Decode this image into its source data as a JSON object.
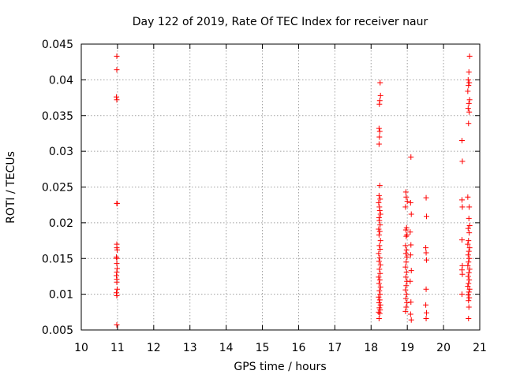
{
  "chart_data": {
    "type": "scatter",
    "title": "Day 122 of 2019, Rate Of TEC Index for receiver naur",
    "xlabel": "GPS time / hours",
    "ylabel": "ROTI / TECUs",
    "xlim": [
      10,
      21
    ],
    "ylim": [
      0.005,
      0.045
    ],
    "xticks": [
      10,
      11,
      12,
      13,
      14,
      15,
      16,
      17,
      18,
      19,
      20,
      21
    ],
    "xtick_labels": [
      "10",
      "11",
      "12",
      "13",
      "14",
      "15",
      "16",
      "17",
      "18",
      "19",
      "20",
      "21"
    ],
    "yticks": [
      0.005,
      0.01,
      0.015,
      0.02,
      0.025,
      0.03,
      0.035,
      0.04,
      0.045
    ],
    "ytick_labels": [
      "0.005",
      "0.01",
      "0.015",
      "0.02",
      "0.025",
      "0.03",
      "0.035",
      "0.04",
      "0.045"
    ],
    "grid": true,
    "marker": "plus",
    "marker_color": "#ff0000",
    "series": [
      {
        "name": "ROTI",
        "points": [
          [
            10.98,
            0.0433
          ],
          [
            10.98,
            0.0414
          ],
          [
            10.97,
            0.0376
          ],
          [
            10.98,
            0.0372
          ],
          [
            10.98,
            0.0227
          ],
          [
            10.99,
            0.0227
          ],
          [
            10.98,
            0.017
          ],
          [
            10.98,
            0.0165
          ],
          [
            10.99,
            0.0162
          ],
          [
            10.97,
            0.0152
          ],
          [
            10.98,
            0.015
          ],
          [
            10.98,
            0.0143
          ],
          [
            10.99,
            0.0136
          ],
          [
            10.98,
            0.0131
          ],
          [
            10.97,
            0.0126
          ],
          [
            10.98,
            0.0121
          ],
          [
            10.98,
            0.0117
          ],
          [
            10.99,
            0.0107
          ],
          [
            10.97,
            0.0102
          ],
          [
            10.98,
            0.0098
          ],
          [
            10.98,
            0.0057
          ],
          [
            18.25,
            0.0396
          ],
          [
            18.26,
            0.0378
          ],
          [
            18.24,
            0.0371
          ],
          [
            18.23,
            0.0366
          ],
          [
            18.22,
            0.0332
          ],
          [
            18.24,
            0.0328
          ],
          [
            18.23,
            0.032
          ],
          [
            18.22,
            0.031
          ],
          [
            18.24,
            0.0252
          ],
          [
            18.22,
            0.0238
          ],
          [
            18.25,
            0.0233
          ],
          [
            18.21,
            0.0228
          ],
          [
            18.23,
            0.0222
          ],
          [
            18.24,
            0.0217
          ],
          [
            18.26,
            0.0212
          ],
          [
            18.22,
            0.0207
          ],
          [
            18.23,
            0.0203
          ],
          [
            18.25,
            0.0197
          ],
          [
            18.21,
            0.0191
          ],
          [
            18.24,
            0.0188
          ],
          [
            18.22,
            0.0183
          ],
          [
            18.26,
            0.0175
          ],
          [
            18.23,
            0.0168
          ],
          [
            18.25,
            0.0163
          ],
          [
            18.21,
            0.0157
          ],
          [
            18.24,
            0.0151
          ],
          [
            18.22,
            0.0146
          ],
          [
            18.26,
            0.0141
          ],
          [
            18.23,
            0.0135
          ],
          [
            18.25,
            0.0129
          ],
          [
            18.21,
            0.0124
          ],
          [
            18.24,
            0.012
          ],
          [
            18.22,
            0.0115
          ],
          [
            18.26,
            0.011
          ],
          [
            18.23,
            0.0105
          ],
          [
            18.25,
            0.01
          ],
          [
            18.21,
            0.0096
          ],
          [
            18.24,
            0.0092
          ],
          [
            18.22,
            0.0088
          ],
          [
            18.26,
            0.0085
          ],
          [
            18.23,
            0.0081
          ],
          [
            18.25,
            0.0078
          ],
          [
            18.21,
            0.0075
          ],
          [
            18.24,
            0.0073
          ],
          [
            18.22,
            0.0066
          ],
          [
            18.96,
            0.0243
          ],
          [
            18.97,
            0.0236
          ],
          [
            19.0,
            0.023
          ],
          [
            18.95,
            0.0222
          ],
          [
            18.98,
            0.0193
          ],
          [
            18.96,
            0.019
          ],
          [
            18.99,
            0.0183
          ],
          [
            18.97,
            0.0181
          ],
          [
            18.95,
            0.0168
          ],
          [
            18.98,
            0.0162
          ],
          [
            18.96,
            0.0157
          ],
          [
            18.99,
            0.0152
          ],
          [
            18.97,
            0.0145
          ],
          [
            18.95,
            0.0138
          ],
          [
            18.98,
            0.0131
          ],
          [
            18.96,
            0.0124
          ],
          [
            18.99,
            0.0118
          ],
          [
            18.97,
            0.0112
          ],
          [
            18.95,
            0.0106
          ],
          [
            18.98,
            0.01
          ],
          [
            18.96,
            0.0094
          ],
          [
            18.99,
            0.0088
          ],
          [
            18.97,
            0.0082
          ],
          [
            18.95,
            0.0076
          ],
          [
            19.1,
            0.0292
          ],
          [
            19.09,
            0.0228
          ],
          [
            19.11,
            0.0212
          ],
          [
            19.08,
            0.0187
          ],
          [
            19.1,
            0.0169
          ],
          [
            19.09,
            0.0155
          ],
          [
            19.11,
            0.0133
          ],
          [
            19.08,
            0.0118
          ],
          [
            19.1,
            0.0089
          ],
          [
            19.09,
            0.0072
          ],
          [
            19.11,
            0.0064
          ],
          [
            19.52,
            0.0235
          ],
          [
            19.53,
            0.0209
          ],
          [
            19.51,
            0.0165
          ],
          [
            19.52,
            0.0158
          ],
          [
            19.53,
            0.0148
          ],
          [
            19.52,
            0.0107
          ],
          [
            19.51,
            0.0085
          ],
          [
            19.53,
            0.0074
          ],
          [
            19.52,
            0.0066
          ],
          [
            20.51,
            0.0315
          ],
          [
            20.52,
            0.0286
          ],
          [
            20.51,
            0.0232
          ],
          [
            20.52,
            0.0222
          ],
          [
            20.51,
            0.0176
          ],
          [
            20.52,
            0.014
          ],
          [
            20.51,
            0.0134
          ],
          [
            20.52,
            0.0128
          ],
          [
            20.51,
            0.01
          ],
          [
            20.72,
            0.0433
          ],
          [
            20.7,
            0.0411
          ],
          [
            20.68,
            0.04
          ],
          [
            20.71,
            0.0396
          ],
          [
            20.69,
            0.0392
          ],
          [
            20.67,
            0.0384
          ],
          [
            20.72,
            0.0372
          ],
          [
            20.7,
            0.0367
          ],
          [
            20.68,
            0.036
          ],
          [
            20.71,
            0.0355
          ],
          [
            20.69,
            0.0339
          ],
          [
            20.67,
            0.0236
          ],
          [
            20.71,
            0.0222
          ],
          [
            20.7,
            0.0206
          ],
          [
            20.72,
            0.0196
          ],
          [
            20.68,
            0.0192
          ],
          [
            20.71,
            0.0186
          ],
          [
            20.69,
            0.0175
          ],
          [
            20.67,
            0.017
          ],
          [
            20.72,
            0.0165
          ],
          [
            20.7,
            0.016
          ],
          [
            20.68,
            0.0155
          ],
          [
            20.71,
            0.015
          ],
          [
            20.69,
            0.0145
          ],
          [
            20.67,
            0.014
          ],
          [
            20.72,
            0.0135
          ],
          [
            20.7,
            0.013
          ],
          [
            20.68,
            0.0125
          ],
          [
            20.71,
            0.012
          ],
          [
            20.69,
            0.0115
          ],
          [
            20.67,
            0.0111
          ],
          [
            20.72,
            0.0107
          ],
          [
            20.7,
            0.0103
          ],
          [
            20.68,
            0.0099
          ],
          [
            20.71,
            0.0095
          ],
          [
            20.69,
            0.0091
          ],
          [
            20.7,
            0.0082
          ],
          [
            20.69,
            0.0066
          ]
        ]
      }
    ]
  }
}
